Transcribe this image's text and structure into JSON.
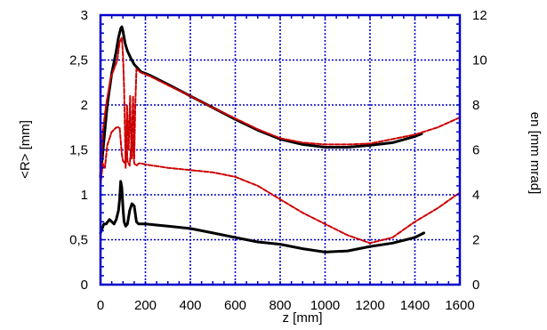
{
  "chart_data": {
    "type": "line",
    "title": "",
    "xlabel": "z  [mm]",
    "ylabel_left": "<R>  [mm]",
    "ylabel_right": "en  [mm mrad]",
    "xlim": [
      0,
      1600
    ],
    "ylim_left": [
      0,
      3
    ],
    "ylim_right": [
      0,
      12
    ],
    "grid": true,
    "x_ticks": [
      "0",
      "200",
      "400",
      "600",
      "800",
      "1000",
      "1200",
      "1400",
      "1600"
    ],
    "y_left_ticks": [
      "0",
      "0,5",
      "1",
      "1,5",
      "2",
      "2,5",
      "3"
    ],
    "y_right_ticks": [
      "0",
      "2",
      "4",
      "6",
      "8",
      "10",
      "12"
    ],
    "colors": {
      "grid": "#0000cc",
      "black": "#000000",
      "red": "#cc0000"
    },
    "series": [
      {
        "axis": "left",
        "color": "#000000",
        "style": "solid",
        "x": [
          0,
          15,
          30,
          50,
          70,
          80,
          90,
          95,
          100,
          105,
          110,
          120,
          135,
          150,
          180,
          220,
          300,
          400,
          500,
          600,
          700,
          800,
          900,
          1000,
          1100,
          1200,
          1300,
          1400,
          1430
        ],
        "y": [
          1.2,
          1.6,
          2.0,
          2.35,
          2.6,
          2.75,
          2.85,
          2.87,
          2.82,
          2.75,
          2.68,
          2.6,
          2.52,
          2.45,
          2.37,
          2.33,
          2.23,
          2.1,
          1.97,
          1.84,
          1.72,
          1.62,
          1.56,
          1.53,
          1.53,
          1.55,
          1.58,
          1.65,
          1.68
        ]
      },
      {
        "axis": "left",
        "color": "#cc0000",
        "style": "dashed",
        "x": [
          0,
          10,
          25,
          45,
          60,
          75,
          85,
          95,
          100,
          105,
          112,
          118,
          125,
          132,
          138,
          145,
          150,
          155,
          160,
          170,
          180,
          220,
          300,
          400,
          500,
          600,
          700,
          800,
          900,
          1000,
          1100,
          1200,
          1300,
          1400,
          1500,
          1600
        ],
        "y": [
          1.2,
          1.7,
          2.0,
          2.3,
          2.4,
          2.5,
          2.7,
          2.75,
          2.55,
          2.2,
          1.3,
          2.0,
          1.5,
          2.1,
          1.4,
          2.1,
          1.4,
          2.0,
          2.4,
          2.38,
          2.36,
          2.32,
          2.22,
          2.1,
          1.97,
          1.85,
          1.73,
          1.63,
          1.58,
          1.56,
          1.56,
          1.57,
          1.62,
          1.67,
          1.75,
          1.86
        ]
      },
      {
        "axis": "right",
        "color": "#000000",
        "style": "solid",
        "x": [
          0,
          15,
          25,
          40,
          60,
          70,
          80,
          85,
          90,
          95,
          100,
          105,
          112,
          120,
          130,
          140,
          150,
          160,
          170,
          180,
          200,
          300,
          400,
          500,
          600,
          700,
          800,
          900,
          1000,
          1100,
          1200,
          1300,
          1400,
          1440
        ],
        "y": [
          2.3,
          2.7,
          2.7,
          2.9,
          2.7,
          2.9,
          3.3,
          3.8,
          4.6,
          4.3,
          3.4,
          2.8,
          2.6,
          2.7,
          3.3,
          3.6,
          3.5,
          2.8,
          2.7,
          2.7,
          2.7,
          2.6,
          2.5,
          2.3,
          2.1,
          1.9,
          1.8,
          1.6,
          1.45,
          1.5,
          1.7,
          1.85,
          2.1,
          2.3
        ]
      },
      {
        "axis": "right",
        "color": "#cc0000",
        "style": "dashed",
        "x": [
          0,
          10,
          20,
          30,
          50,
          70,
          85,
          95,
          100,
          110,
          115,
          120,
          130,
          140,
          150,
          160,
          170,
          180,
          200,
          300,
          400,
          500,
          600,
          700,
          800,
          900,
          1000,
          1100,
          1200,
          1300,
          1400,
          1500,
          1600
        ],
        "y": [
          4.4,
          5.4,
          5.2,
          6.2,
          6.8,
          7.0,
          7.0,
          5.8,
          5.5,
          5.4,
          6.8,
          5.5,
          5.3,
          6.6,
          5.4,
          5.3,
          5.4,
          5.4,
          5.35,
          5.2,
          5.1,
          5.0,
          4.8,
          4.4,
          3.8,
          3.2,
          2.7,
          2.2,
          1.85,
          2.1,
          2.8,
          3.4,
          4.1
        ]
      }
    ]
  }
}
